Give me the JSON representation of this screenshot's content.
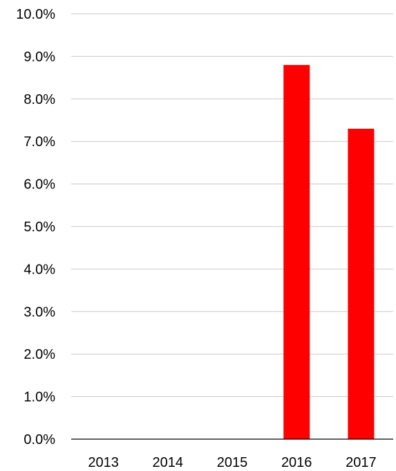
{
  "chart_data": {
    "type": "bar",
    "categories": [
      "2013",
      "2014",
      "2015",
      "2016",
      "2017"
    ],
    "values": [
      0,
      0,
      0,
      8.8,
      7.3
    ],
    "ylim": [
      0,
      10
    ],
    "yticks": [
      0,
      1,
      2,
      3,
      4,
      5,
      6,
      7,
      8,
      9,
      10
    ],
    "ytick_labels": [
      "0.0%",
      "1.0%",
      "2.0%",
      "3.0%",
      "4.0%",
      "5.0%",
      "6.0%",
      "7.0%",
      "8.0%",
      "9.0%",
      "10.0%"
    ],
    "grid": true,
    "legend": "none",
    "bar_color": "#ff0000"
  }
}
